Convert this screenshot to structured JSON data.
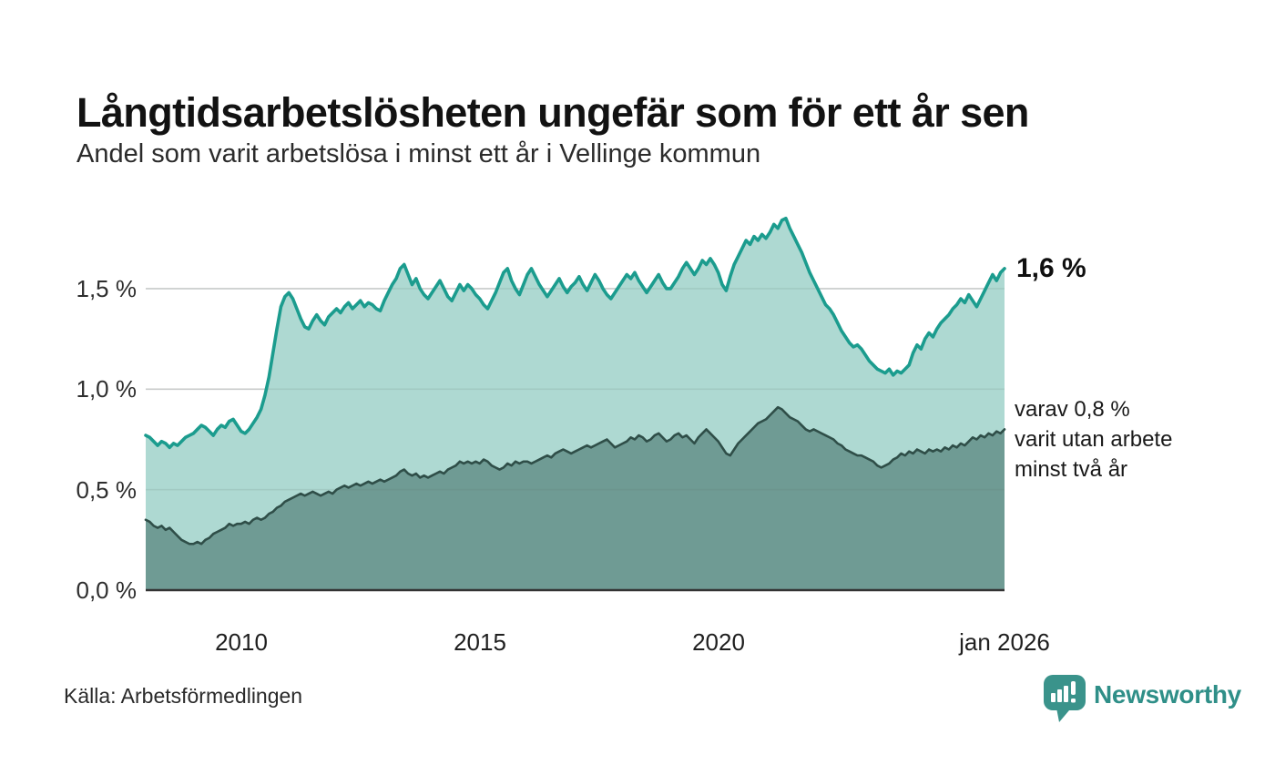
{
  "header": {
    "title": "Långtidsarbetslösheten ungefär som för ett år sen",
    "subtitle": "Andel som varit arbetslösa i minst ett år i Vellinge kommun"
  },
  "annotations": {
    "latest_value": "1,6 %",
    "secondary": [
      "varav 0,8 %",
      "varit utan arbete",
      "minst två år"
    ]
  },
  "footer": {
    "source": "Källa: Arbetsförmedlingen",
    "logo_text": "Newsworthy"
  },
  "chart_data": {
    "type": "area",
    "title": "Långtidsarbetslösheten ungefär som för ett år sen",
    "subtitle": "Andel som varit arbetslösa i minst ett år i Vellinge kommun",
    "x_unit": "month",
    "x_start": "2008-01",
    "x_end": "2026-01",
    "grid": "horizontal",
    "legend_position": "annotations-right",
    "ylim": [
      0,
      1.9
    ],
    "yticks": [
      {
        "label": "0,0 %",
        "value": 0.0
      },
      {
        "label": "0,5 %",
        "value": 0.5
      },
      {
        "label": "1,0 %",
        "value": 1.0
      },
      {
        "label": "1,5 %",
        "value": 1.5
      }
    ],
    "xticks": [
      {
        "label": "2010",
        "index": 24
      },
      {
        "label": "2015",
        "index": 84
      },
      {
        "label": "2020",
        "index": 144
      },
      {
        "label": "jan 2026",
        "index": 216
      }
    ],
    "colors": {
      "grid": "#dadada",
      "grid_overlay": "#5f716d",
      "axis": "#333333",
      "total_line": "#1b9c8e",
      "total_fill": "#aed9d2",
      "two_year_line": "#2f4e48",
      "two_year_fill": "#6f9b94",
      "logo_teal": "#3a938b"
    },
    "series": [
      {
        "name": "Andel arbetslösa minst ett år",
        "latest_label": "1,6 %",
        "latest_value": 1.6,
        "values": [
          0.77,
          0.76,
          0.74,
          0.72,
          0.74,
          0.73,
          0.71,
          0.73,
          0.72,
          0.74,
          0.76,
          0.77,
          0.78,
          0.8,
          0.82,
          0.81,
          0.79,
          0.77,
          0.8,
          0.82,
          0.81,
          0.84,
          0.85,
          0.82,
          0.79,
          0.78,
          0.8,
          0.83,
          0.86,
          0.9,
          0.97,
          1.06,
          1.18,
          1.3,
          1.41,
          1.46,
          1.48,
          1.45,
          1.4,
          1.35,
          1.31,
          1.3,
          1.34,
          1.37,
          1.34,
          1.32,
          1.36,
          1.38,
          1.4,
          1.38,
          1.41,
          1.43,
          1.4,
          1.42,
          1.44,
          1.41,
          1.43,
          1.42,
          1.4,
          1.39,
          1.44,
          1.48,
          1.52,
          1.55,
          1.6,
          1.62,
          1.57,
          1.52,
          1.55,
          1.5,
          1.47,
          1.45,
          1.48,
          1.51,
          1.54,
          1.5,
          1.46,
          1.44,
          1.48,
          1.52,
          1.49,
          1.52,
          1.5,
          1.47,
          1.45,
          1.42,
          1.4,
          1.44,
          1.48,
          1.53,
          1.58,
          1.6,
          1.54,
          1.5,
          1.47,
          1.52,
          1.57,
          1.6,
          1.56,
          1.52,
          1.49,
          1.46,
          1.49,
          1.52,
          1.55,
          1.51,
          1.48,
          1.51,
          1.53,
          1.56,
          1.52,
          1.49,
          1.53,
          1.57,
          1.54,
          1.5,
          1.47,
          1.45,
          1.48,
          1.51,
          1.54,
          1.57,
          1.55,
          1.58,
          1.54,
          1.51,
          1.48,
          1.51,
          1.54,
          1.57,
          1.53,
          1.5,
          1.5,
          1.53,
          1.56,
          1.6,
          1.63,
          1.6,
          1.57,
          1.6,
          1.64,
          1.62,
          1.65,
          1.62,
          1.58,
          1.52,
          1.49,
          1.56,
          1.62,
          1.66,
          1.7,
          1.74,
          1.72,
          1.76,
          1.74,
          1.77,
          1.75,
          1.78,
          1.82,
          1.8,
          1.84,
          1.85,
          1.8,
          1.76,
          1.72,
          1.68,
          1.63,
          1.58,
          1.54,
          1.5,
          1.46,
          1.42,
          1.4,
          1.37,
          1.33,
          1.29,
          1.26,
          1.23,
          1.21,
          1.22,
          1.2,
          1.17,
          1.14,
          1.12,
          1.1,
          1.09,
          1.08,
          1.1,
          1.07,
          1.09,
          1.08,
          1.1,
          1.12,
          1.18,
          1.22,
          1.2,
          1.25,
          1.28,
          1.26,
          1.3,
          1.33,
          1.35,
          1.37,
          1.4,
          1.42,
          1.45,
          1.43,
          1.47,
          1.44,
          1.41,
          1.45,
          1.49,
          1.53,
          1.57,
          1.54,
          1.58,
          1.6
        ]
      },
      {
        "name": "varav utan arbete minst två år",
        "latest_label": "0,8 %",
        "latest_value": 0.8,
        "values": [
          0.35,
          0.34,
          0.32,
          0.31,
          0.32,
          0.3,
          0.31,
          0.29,
          0.27,
          0.25,
          0.24,
          0.23,
          0.23,
          0.24,
          0.23,
          0.25,
          0.26,
          0.28,
          0.29,
          0.3,
          0.31,
          0.33,
          0.32,
          0.33,
          0.33,
          0.34,
          0.33,
          0.35,
          0.36,
          0.35,
          0.36,
          0.38,
          0.39,
          0.41,
          0.42,
          0.44,
          0.45,
          0.46,
          0.47,
          0.48,
          0.47,
          0.48,
          0.49,
          0.48,
          0.47,
          0.48,
          0.49,
          0.48,
          0.5,
          0.51,
          0.52,
          0.51,
          0.52,
          0.53,
          0.52,
          0.53,
          0.54,
          0.53,
          0.54,
          0.55,
          0.54,
          0.55,
          0.56,
          0.57,
          0.59,
          0.6,
          0.58,
          0.57,
          0.58,
          0.56,
          0.57,
          0.56,
          0.57,
          0.58,
          0.59,
          0.58,
          0.6,
          0.61,
          0.62,
          0.64,
          0.63,
          0.64,
          0.63,
          0.64,
          0.63,
          0.65,
          0.64,
          0.62,
          0.61,
          0.6,
          0.61,
          0.63,
          0.62,
          0.64,
          0.63,
          0.64,
          0.64,
          0.63,
          0.64,
          0.65,
          0.66,
          0.67,
          0.66,
          0.68,
          0.69,
          0.7,
          0.69,
          0.68,
          0.69,
          0.7,
          0.71,
          0.72,
          0.71,
          0.72,
          0.73,
          0.74,
          0.75,
          0.73,
          0.71,
          0.72,
          0.73,
          0.74,
          0.76,
          0.75,
          0.77,
          0.76,
          0.74,
          0.75,
          0.77,
          0.78,
          0.76,
          0.74,
          0.75,
          0.77,
          0.78,
          0.76,
          0.77,
          0.75,
          0.73,
          0.76,
          0.78,
          0.8,
          0.78,
          0.76,
          0.74,
          0.71,
          0.68,
          0.67,
          0.7,
          0.73,
          0.75,
          0.77,
          0.79,
          0.81,
          0.83,
          0.84,
          0.85,
          0.87,
          0.89,
          0.91,
          0.9,
          0.88,
          0.86,
          0.85,
          0.84,
          0.82,
          0.8,
          0.79,
          0.8,
          0.79,
          0.78,
          0.77,
          0.76,
          0.75,
          0.73,
          0.72,
          0.7,
          0.69,
          0.68,
          0.67,
          0.67,
          0.66,
          0.65,
          0.64,
          0.62,
          0.61,
          0.62,
          0.63,
          0.65,
          0.66,
          0.68,
          0.67,
          0.69,
          0.68,
          0.7,
          0.69,
          0.68,
          0.7,
          0.69,
          0.7,
          0.69,
          0.71,
          0.7,
          0.72,
          0.71,
          0.73,
          0.72,
          0.74,
          0.76,
          0.75,
          0.77,
          0.76,
          0.78,
          0.77,
          0.79,
          0.78,
          0.8
        ]
      }
    ]
  }
}
